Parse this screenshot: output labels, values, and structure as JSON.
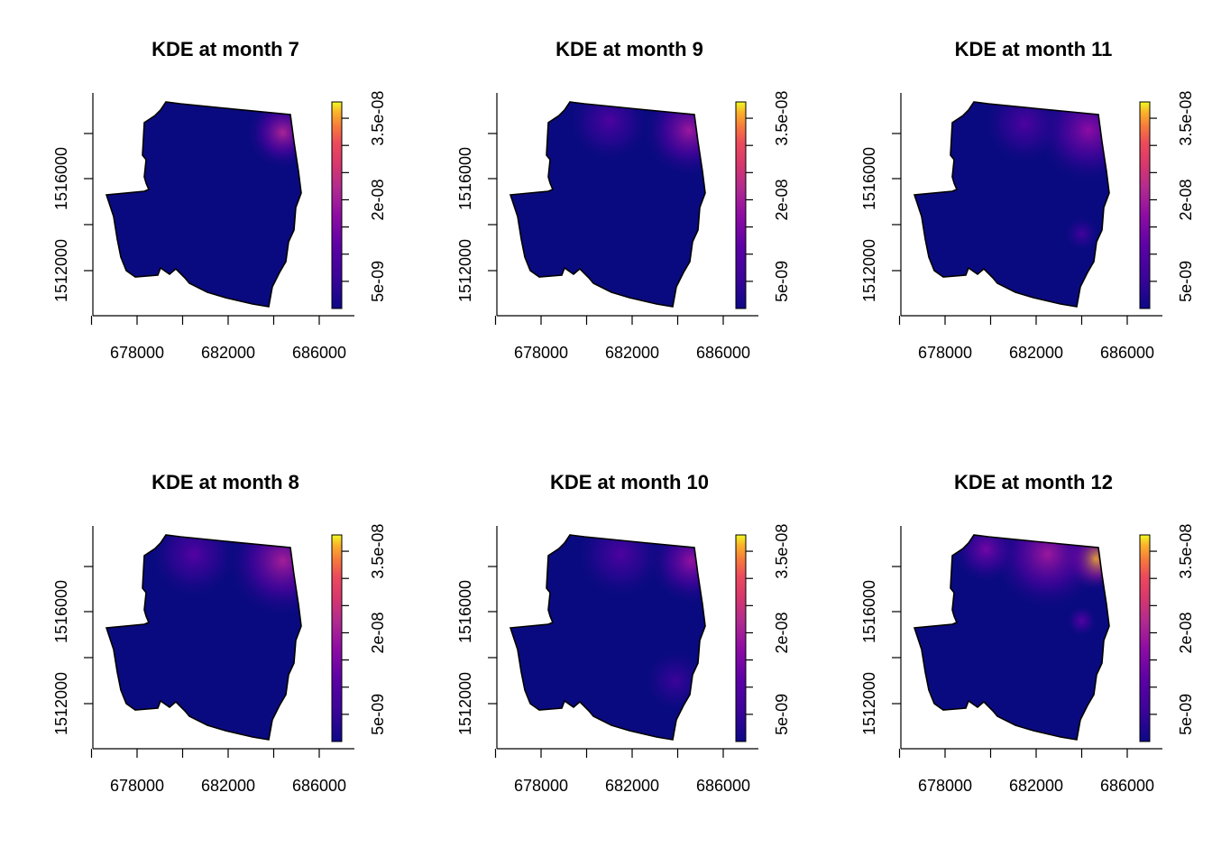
{
  "chart_data": [
    {
      "type": "heatmap",
      "title": "KDE at month 7",
      "xlabel": "",
      "ylabel": "",
      "x_ticks": [
        678000,
        682000,
        686000
      ],
      "y_ticks": [
        1512000,
        1516000
      ],
      "xlim": [
        676000,
        687400
      ],
      "ylim": [
        1509600,
        1519400
      ],
      "colorbar": {
        "ticks": [
          "5e-09",
          "2e-08",
          "3.5e-08"
        ],
        "tick_values": [
          5e-09,
          2e-08,
          3.5e-08
        ],
        "range": [
          0,
          3.8e-08
        ],
        "palette": "plasma"
      },
      "hotspots": [
        {
          "x": 684400,
          "y": 1518000,
          "radius": 1100,
          "value": 2.1e-08
        }
      ]
    },
    {
      "type": "heatmap",
      "title": "KDE at month 9",
      "xlabel": "",
      "ylabel": "",
      "x_ticks": [
        678000,
        682000,
        686000
      ],
      "y_ticks": [
        1512000,
        1516000
      ],
      "xlim": [
        676000,
        687400
      ],
      "ylim": [
        1509600,
        1519400
      ],
      "colorbar": {
        "ticks": [
          "5e-09",
          "2e-08",
          "3.5e-08"
        ],
        "tick_values": [
          5e-09,
          2e-08,
          3.5e-08
        ],
        "range": [
          0,
          3.8e-08
        ],
        "palette": "plasma"
      },
      "hotspots": [
        {
          "x": 684500,
          "y": 1518100,
          "radius": 1400,
          "value": 1.9e-08
        },
        {
          "x": 681000,
          "y": 1518500,
          "radius": 1200,
          "value": 9e-09
        }
      ]
    },
    {
      "type": "heatmap",
      "title": "KDE at month 11",
      "xlabel": "",
      "ylabel": "",
      "x_ticks": [
        678000,
        682000,
        686000
      ],
      "y_ticks": [
        1512000,
        1516000
      ],
      "xlim": [
        676000,
        687400
      ],
      "ylim": [
        1509600,
        1519400
      ],
      "colorbar": {
        "ticks": [
          "5e-09",
          "2e-08",
          "3.5e-08"
        ],
        "tick_values": [
          5e-09,
          2e-08,
          3.5e-08
        ],
        "range": [
          0,
          3.8e-08
        ],
        "palette": "plasma"
      },
      "hotspots": [
        {
          "x": 684300,
          "y": 1518100,
          "radius": 1600,
          "value": 1.7e-08
        },
        {
          "x": 681500,
          "y": 1518400,
          "radius": 1200,
          "value": 9e-09
        },
        {
          "x": 684000,
          "y": 1513600,
          "radius": 500,
          "value": 7e-09
        }
      ]
    },
    {
      "type": "heatmap",
      "title": "KDE at month 8",
      "xlabel": "",
      "ylabel": "",
      "x_ticks": [
        678000,
        682000,
        686000
      ],
      "y_ticks": [
        1512000,
        1516000
      ],
      "xlim": [
        676000,
        687400
      ],
      "ylim": [
        1509600,
        1519400
      ],
      "colorbar": {
        "ticks": [
          "5e-09",
          "2e-08",
          "3.5e-08"
        ],
        "tick_values": [
          5e-09,
          2e-08,
          3.5e-08
        ],
        "range": [
          0,
          3.8e-08
        ],
        "palette": "plasma"
      },
      "hotspots": [
        {
          "x": 684400,
          "y": 1518200,
          "radius": 1700,
          "value": 2e-08
        },
        {
          "x": 680500,
          "y": 1518500,
          "radius": 1300,
          "value": 1e-08
        }
      ]
    },
    {
      "type": "heatmap",
      "title": "KDE at month 10",
      "xlabel": "",
      "ylabel": "",
      "x_ticks": [
        678000,
        682000,
        686000
      ],
      "y_ticks": [
        1512000,
        1516000
      ],
      "xlim": [
        676000,
        687400
      ],
      "ylim": [
        1509600,
        1519400
      ],
      "colorbar": {
        "ticks": [
          "5e-09",
          "2e-08",
          "3.5e-08"
        ],
        "tick_values": [
          5e-09,
          2e-08,
          3.5e-08
        ],
        "range": [
          0,
          3.8e-08
        ],
        "palette": "plasma"
      },
      "hotspots": [
        {
          "x": 684600,
          "y": 1518200,
          "radius": 1300,
          "value": 1.8e-08
        },
        {
          "x": 681500,
          "y": 1518500,
          "radius": 1300,
          "value": 9e-09
        },
        {
          "x": 683900,
          "y": 1513000,
          "radius": 900,
          "value": 6e-09
        }
      ]
    },
    {
      "type": "heatmap",
      "title": "KDE at month 12",
      "xlabel": "",
      "ylabel": "",
      "x_ticks": [
        678000,
        682000,
        686000
      ],
      "y_ticks": [
        1512000,
        1516000
      ],
      "xlim": [
        676000,
        687400
      ],
      "ylim": [
        1509600,
        1519400
      ],
      "colorbar": {
        "ticks": [
          "5e-09",
          "2e-08",
          "3.5e-08"
        ],
        "tick_values": [
          5e-09,
          2e-08,
          3.5e-08
        ],
        "range": [
          0,
          3.8e-08
        ],
        "palette": "plasma"
      },
      "hotspots": [
        {
          "x": 684600,
          "y": 1518300,
          "radius": 1000,
          "value": 3.6e-08
        },
        {
          "x": 682500,
          "y": 1518500,
          "radius": 1700,
          "value": 1.9e-08
        },
        {
          "x": 679800,
          "y": 1518700,
          "radius": 1000,
          "value": 1.4e-08
        },
        {
          "x": 684000,
          "y": 1515600,
          "radius": 450,
          "value": 1e-08
        }
      ]
    }
  ]
}
